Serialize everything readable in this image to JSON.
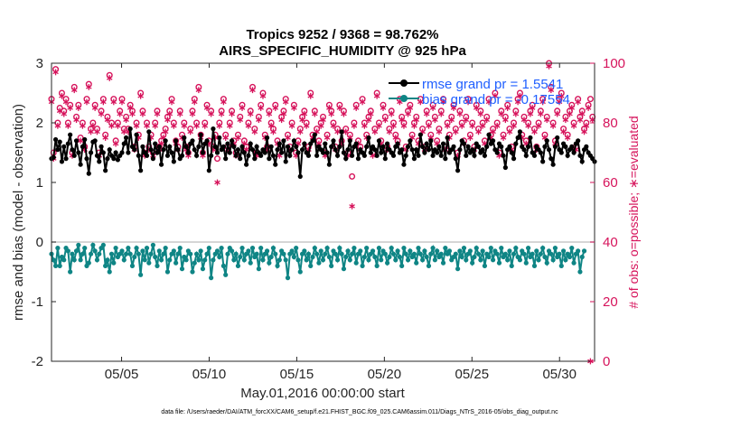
{
  "chart_data": {
    "type": "line",
    "title_line1": "Tropics 9252 / 9368 = 98.762%",
    "title_line2": "AIRS_SPECIFIC_HUMIDITY @ 925 hPa",
    "xlabel": "May.01,2016 00:00:00 start",
    "ylabel_left": "rmse and bias (model - observation)",
    "ylabel_right": "# of obs: o=possible; ∗=evaluated",
    "xlim": [
      1,
      32
    ],
    "ylim_left": [
      -2,
      3
    ],
    "ylim_right": [
      0,
      100
    ],
    "x_ticks": [
      5,
      10,
      15,
      20,
      25,
      30
    ],
    "x_tick_labels": [
      "05/05",
      "05/10",
      "05/15",
      "05/20",
      "05/25",
      "05/30"
    ],
    "y_left_ticks": [
      "-2",
      "-1",
      "0",
      "1",
      "2",
      "3"
    ],
    "y_right_ticks": [
      "0",
      "20",
      "40",
      "60",
      "80",
      "100"
    ],
    "footnote": "data file: /Users/raeder/DAI/ATM_forcXX/CAM6_setup/f.e21.FHIST_BGC.f09_025.CAM6assim.011/Diags_NTrS_2016-05/obs_diag_output.nc",
    "colors": {
      "rmse": "#000000",
      "bias": "#0f8585",
      "obs": "#d6135b",
      "legend_text": "#1f5fff",
      "zero_line": "#c8c8c8"
    },
    "series": [
      {
        "name": "rmse grand pr = 1.5541",
        "axis": "left",
        "values": [
          1.4,
          1.42,
          1.72,
          1.55,
          1.68,
          1.35,
          1.6,
          1.4,
          1.65,
          1.8,
          1.55,
          1.45,
          1.7,
          1.5,
          1.3,
          1.6,
          1.72,
          1.4,
          1.15,
          1.5,
          1.68,
          1.7,
          1.45,
          1.35,
          1.6,
          1.5,
          1.2,
          1.4,
          1.55,
          1.45,
          1.4,
          1.5,
          1.38,
          1.45,
          1.5,
          1.65,
          1.75,
          1.5,
          1.9,
          1.6,
          1.55,
          1.8,
          1.45,
          1.2,
          1.6,
          1.5,
          1.45,
          1.85,
          1.55,
          1.4,
          1.65,
          1.5,
          1.6,
          1.3,
          1.55,
          1.7,
          1.45,
          1.6,
          1.5,
          1.35,
          1.7,
          1.55,
          1.4,
          1.45,
          1.75,
          1.6,
          1.5,
          1.65,
          1.7,
          1.55,
          1.45,
          1.6,
          1.8,
          1.5,
          1.65,
          1.7,
          1.2,
          1.45,
          1.9,
          1.6,
          1.5,
          1.75,
          1.55,
          1.6,
          1.4,
          1.65,
          1.5,
          1.7,
          1.6,
          1.45,
          1.55,
          1.4,
          1.6,
          1.5,
          1.3,
          1.45,
          1.65,
          1.55,
          1.4,
          1.6,
          1.5,
          1.45,
          1.55,
          1.5,
          1.75,
          1.4,
          1.6,
          1.45,
          1.3,
          1.55,
          1.65,
          1.5,
          1.7,
          1.35,
          1.6,
          1.45,
          1.55,
          1.7,
          1.6,
          1.5,
          1.1,
          1.55,
          1.65,
          1.5,
          1.45,
          1.65,
          1.7,
          1.8,
          1.45,
          1.6,
          1.55,
          1.5,
          1.65,
          1.5,
          1.3,
          1.6,
          1.7,
          1.55,
          1.45,
          1.6,
          1.85,
          1.5,
          1.4,
          1.55,
          1.7,
          1.45,
          1.6,
          1.65,
          1.4,
          1.55,
          1.5,
          1.45,
          1.6,
          1.75,
          1.5,
          1.6,
          1.55,
          1.45,
          1.7,
          1.5,
          1.6,
          1.4,
          1.65,
          1.55,
          1.5,
          1.45,
          1.6,
          1.65,
          1.5,
          1.55,
          1.3,
          1.45,
          1.6,
          1.7,
          1.55,
          1.4,
          1.55,
          1.45,
          1.8,
          1.6,
          1.5,
          1.65,
          1.55,
          1.7,
          1.45,
          1.55,
          1.5,
          1.6,
          1.45,
          1.65,
          1.4,
          1.75,
          1.5,
          1.55,
          1.6,
          1.4,
          1.2,
          1.55,
          1.7,
          1.65,
          1.45,
          1.6,
          1.5,
          1.55,
          1.45,
          1.65,
          1.6,
          1.5,
          1.55,
          1.45,
          1.6,
          1.8,
          1.65,
          1.7,
          1.55,
          1.5,
          1.65,
          1.6,
          1.45,
          1.25,
          1.55,
          1.6,
          1.5,
          1.4,
          1.65,
          1.75,
          1.85,
          1.6,
          1.55,
          1.45,
          1.6,
          1.75,
          1.5,
          1.45,
          1.6,
          1.55,
          1.5,
          1.35,
          1.6,
          1.7,
          1.55,
          1.4,
          1.3,
          1.6,
          1.75,
          1.55,
          1.5,
          1.65,
          1.6,
          1.45,
          1.55,
          1.6,
          1.5,
          1.65,
          1.7,
          1.45,
          1.35,
          1.55,
          1.6,
          1.5,
          1.45,
          1.4,
          1.35
        ]
      },
      {
        "name": "bias grand pr = -0.17554",
        "axis": "left",
        "values": [
          -0.2,
          -0.3,
          -0.4,
          -0.1,
          -0.4,
          -0.25,
          -0.3,
          -0.1,
          -0.15,
          -0.5,
          -0.2,
          -0.3,
          -0.15,
          -0.05,
          -0.3,
          -0.2,
          -0.1,
          -0.4,
          -0.35,
          -0.2,
          -0.05,
          -0.15,
          -0.3,
          -0.2,
          -0.1,
          -0.05,
          -0.4,
          -0.3,
          -0.5,
          -0.2,
          -0.35,
          -0.1,
          -0.25,
          -0.2,
          -0.15,
          -0.3,
          -0.2,
          -0.1,
          -0.2,
          -0.4,
          -0.25,
          -0.1,
          -0.2,
          -0.55,
          -0.15,
          -0.3,
          -0.1,
          -0.35,
          -0.2,
          -0.05,
          -0.25,
          -0.4,
          -0.15,
          -0.3,
          -0.2,
          -0.1,
          -0.5,
          -0.3,
          -0.2,
          -0.15,
          -0.35,
          -0.2,
          -0.1,
          -0.45,
          -0.25,
          -0.3,
          -0.15,
          -0.2,
          -0.5,
          -0.35,
          -0.2,
          -0.3,
          -0.15,
          -0.45,
          -0.3,
          -0.2,
          -0.1,
          -0.6,
          -0.3,
          -0.2,
          -0.15,
          -0.25,
          -0.1,
          -0.4,
          -0.55,
          -0.2,
          -0.1,
          -0.15,
          -0.3,
          -0.2,
          -0.4,
          -0.25,
          -0.1,
          -0.3,
          -0.2,
          -0.15,
          -0.35,
          -0.1,
          -0.25,
          -0.2,
          -0.45,
          -0.1,
          -0.3,
          -0.2,
          -0.15,
          -0.35,
          -0.25,
          -0.1,
          -0.2,
          -0.4,
          -0.3,
          -0.15,
          -0.2,
          -0.3,
          -0.6,
          -0.2,
          -0.15,
          -0.25,
          -0.1,
          -0.3,
          -0.5,
          -0.2,
          -0.15,
          -0.3,
          -0.2,
          -0.4,
          -0.25,
          -0.1,
          -0.2,
          -0.35,
          -0.15,
          -0.3,
          -0.2,
          -0.1,
          -0.25,
          -0.4,
          -0.15,
          -0.2,
          -0.3,
          -0.1,
          -0.2,
          -0.45,
          -0.25,
          -0.15,
          -0.3,
          -0.2,
          -0.1,
          -0.35,
          -0.2,
          -0.15,
          -0.4,
          -0.25,
          -0.1,
          -0.3,
          -0.2,
          -0.15,
          -0.25,
          -0.4,
          -0.1,
          -0.3,
          -0.15,
          -0.2,
          -0.35,
          -0.25,
          -0.1,
          -0.2,
          -0.3,
          -0.15,
          -0.25,
          -0.4,
          -0.1,
          -0.2,
          -0.3,
          -0.15,
          -0.25,
          -0.2,
          -0.35,
          -0.1,
          -0.2,
          -0.3,
          -0.15,
          -0.25,
          -0.4,
          -0.2,
          -0.1,
          -0.3,
          -0.15,
          -0.25,
          -0.2,
          -0.35,
          -0.1,
          -0.2,
          -0.15,
          -0.3,
          -0.25,
          -0.2,
          -0.45,
          -0.15,
          -0.25,
          -0.1,
          -0.3,
          -0.2,
          -0.15,
          -0.35,
          -0.25,
          -0.1,
          -0.2,
          -0.3,
          -0.15,
          -0.4,
          -0.2,
          -0.25,
          -0.1,
          -0.3,
          -0.15,
          -0.2,
          -0.35,
          -0.1,
          -0.25,
          -0.2,
          -0.3,
          -0.15,
          -0.4,
          -0.2,
          -0.1,
          -0.25,
          -0.3,
          -0.15,
          -0.2,
          -0.35,
          -0.1,
          -0.25,
          -0.2,
          -0.4,
          -0.15,
          -0.3,
          -0.2,
          -0.1,
          -0.25,
          -0.35,
          -0.15,
          -0.2,
          -0.3,
          -0.1,
          -0.25,
          -0.2,
          -0.4,
          -0.15,
          -0.3,
          -0.2,
          -0.25,
          -0.1,
          -0.35,
          -0.2,
          -0.15,
          -0.5,
          -0.25,
          -0.15
        ]
      },
      {
        "name": "obs possible",
        "axis": "right",
        "marker": "o",
        "values": [
          88,
          70,
          98,
          80,
          85,
          90,
          84,
          88,
          80,
          86,
          70,
          92,
          82,
          86,
          75,
          80,
          72,
          88,
          93,
          78,
          80,
          86,
          78,
          70,
          84,
          88,
          76,
          82,
          96,
          80,
          88,
          74,
          80,
          84,
          88,
          78,
          82,
          78,
          86,
          84,
          72,
          80,
          76,
          90,
          84,
          70,
          80,
          72,
          76,
          70,
          80,
          84,
          72,
          74,
          76,
          78,
          82,
          84,
          88,
          80,
          74,
          72,
          84,
          76,
          80,
          72,
          70,
          78,
          84,
          88,
          80,
          92,
          76,
          70,
          80,
          86,
          74,
          84,
          72,
          76,
          68,
          80,
          84,
          88,
          76,
          72,
          80,
          84,
          74,
          70,
          76,
          82,
          86,
          74,
          72,
          80,
          84,
          92,
          78,
          70,
          82,
          86,
          90,
          76,
          72,
          84,
          80,
          78,
          86,
          74,
          70,
          82,
          84,
          88,
          76,
          72,
          80,
          86,
          70,
          74,
          78,
          82,
          84,
          80,
          72,
          90,
          76,
          84,
          78,
          74,
          80,
          82,
          70,
          76,
          86,
          84,
          80,
          72,
          78,
          86,
          74,
          84,
          78,
          70,
          76,
          62,
          80,
          86,
          74,
          72,
          88,
          80,
          76,
          82,
          84,
          70,
          78,
          90,
          80,
          74,
          86,
          82,
          72,
          78,
          84,
          80,
          76,
          74,
          88,
          82,
          80,
          72,
          84,
          86,
          76,
          80,
          82,
          74,
          88,
          78,
          72,
          84,
          80,
          76,
          86,
          82,
          74,
          78,
          84,
          88,
          72,
          80,
          76,
          82,
          86,
          78,
          70,
          84,
          80,
          74,
          82,
          88,
          76,
          80,
          72,
          86,
          78,
          84,
          80,
          74,
          82,
          88,
          76,
          78,
          90,
          80,
          70,
          84,
          76,
          82,
          86,
          78,
          72,
          80,
          84,
          88,
          90,
          76,
          82,
          74,
          80,
          84,
          86,
          78,
          72,
          80,
          84,
          88,
          76,
          82,
          100,
          92,
          80,
          74,
          84,
          88,
          90,
          78,
          82,
          76,
          84,
          86,
          80,
          72,
          88,
          82,
          84,
          78,
          80,
          86,
          88,
          82
        ]
      },
      {
        "name": "obs evaluated",
        "axis": "right",
        "marker": "*",
        "values": [
          87,
          68,
          97,
          79,
          84,
          89,
          83,
          87,
          79,
          85,
          69,
          91,
          81,
          85,
          74,
          79,
          71,
          87,
          92,
          77,
          79,
          85,
          77,
          69,
          83,
          87,
          75,
          81,
          95,
          79,
          87,
          73,
          79,
          83,
          87,
          77,
          81,
          77,
          85,
          83,
          71,
          79,
          75,
          89,
          83,
          69,
          79,
          71,
          75,
          69,
          79,
          83,
          71,
          73,
          75,
          77,
          81,
          83,
          87,
          79,
          73,
          71,
          83,
          75,
          79,
          71,
          69,
          77,
          83,
          87,
          79,
          91,
          75,
          69,
          79,
          85,
          73,
          83,
          71,
          75,
          60,
          79,
          83,
          87,
          75,
          71,
          79,
          83,
          73,
          69,
          75,
          81,
          85,
          73,
          71,
          79,
          83,
          91,
          77,
          69,
          81,
          85,
          89,
          75,
          71,
          83,
          79,
          77,
          85,
          73,
          69,
          81,
          83,
          87,
          75,
          71,
          79,
          85,
          69,
          73,
          77,
          81,
          83,
          79,
          71,
          89,
          75,
          83,
          77,
          73,
          79,
          81,
          69,
          75,
          85,
          83,
          79,
          71,
          77,
          85,
          73,
          83,
          77,
          69,
          75,
          52,
          79,
          85,
          73,
          71,
          87,
          79,
          75,
          81,
          83,
          69,
          77,
          89,
          79,
          73,
          85,
          81,
          71,
          77,
          83,
          79,
          75,
          73,
          87,
          81,
          79,
          71,
          83,
          85,
          75,
          79,
          81,
          73,
          87,
          77,
          71,
          83,
          79,
          75,
          85,
          81,
          73,
          77,
          83,
          87,
          71,
          79,
          75,
          81,
          85,
          77,
          69,
          83,
          79,
          73,
          81,
          87,
          75,
          79,
          71,
          85,
          77,
          83,
          79,
          73,
          81,
          87,
          75,
          77,
          89,
          79,
          69,
          83,
          75,
          81,
          85,
          77,
          71,
          79,
          83,
          87,
          89,
          75,
          81,
          73,
          79,
          83,
          85,
          77,
          71,
          79,
          83,
          87,
          75,
          81,
          99,
          91,
          79,
          73,
          83,
          87,
          89,
          77,
          81,
          75,
          83,
          85,
          79,
          71,
          87,
          81,
          83,
          77,
          79,
          85,
          0,
          81
        ]
      }
    ]
  }
}
